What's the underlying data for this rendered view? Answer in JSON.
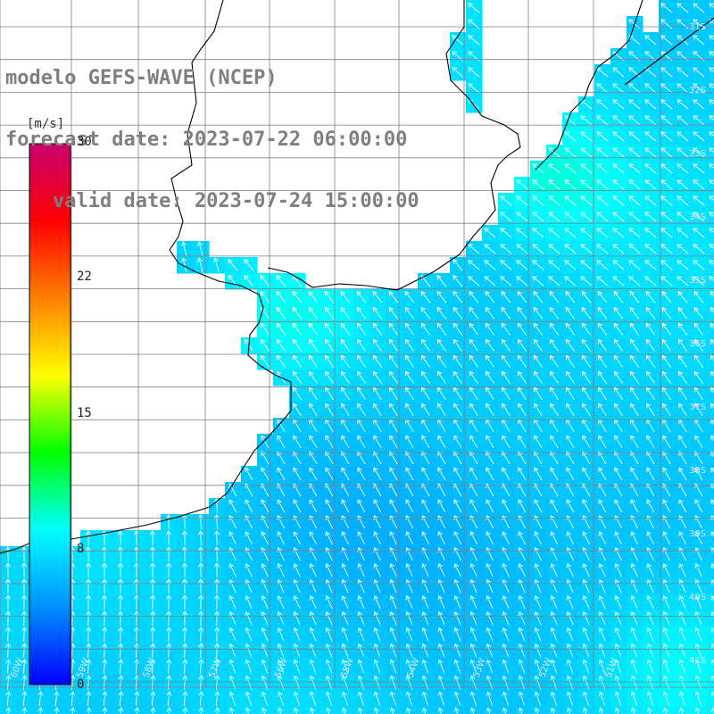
{
  "title": {
    "line1": "modelo GEFS-WAVE (NCEP)",
    "line2": "forecast date: 2023-07-22 06:00:00",
    "line3": "    valid date: 2023-07-24 15:00:00"
  },
  "colorbar": {
    "unit": "[m/s]",
    "ticks": [
      {
        "label": "30",
        "value": 30
      },
      {
        "label": "22",
        "value": 22
      },
      {
        "label": "15",
        "value": 15
      },
      {
        "label": "8",
        "value": 8
      },
      {
        "label": "0",
        "value": 0
      }
    ],
    "colors": [
      "#0000ff",
      "#0090ff",
      "#00ffff",
      "#00ff00",
      "#ffff00",
      "#ff8000",
      "#ff0000",
      "#c8006e"
    ]
  },
  "lat_labels": [
    "31S",
    "32S",
    "33S",
    "34S",
    "35S",
    "36S",
    "37S",
    "38S",
    "39S",
    "40S",
    "41S"
  ],
  "lon_labels": [
    "60W",
    "59W",
    "58W",
    "57W",
    "56W",
    "55W",
    "54W",
    "53W",
    "52W",
    "51W"
  ],
  "colors": {
    "land": "#ffffff",
    "grid": "#808080",
    "coast": "#000000",
    "arrow": "#ffffff",
    "title": "#7f7f7f"
  }
}
